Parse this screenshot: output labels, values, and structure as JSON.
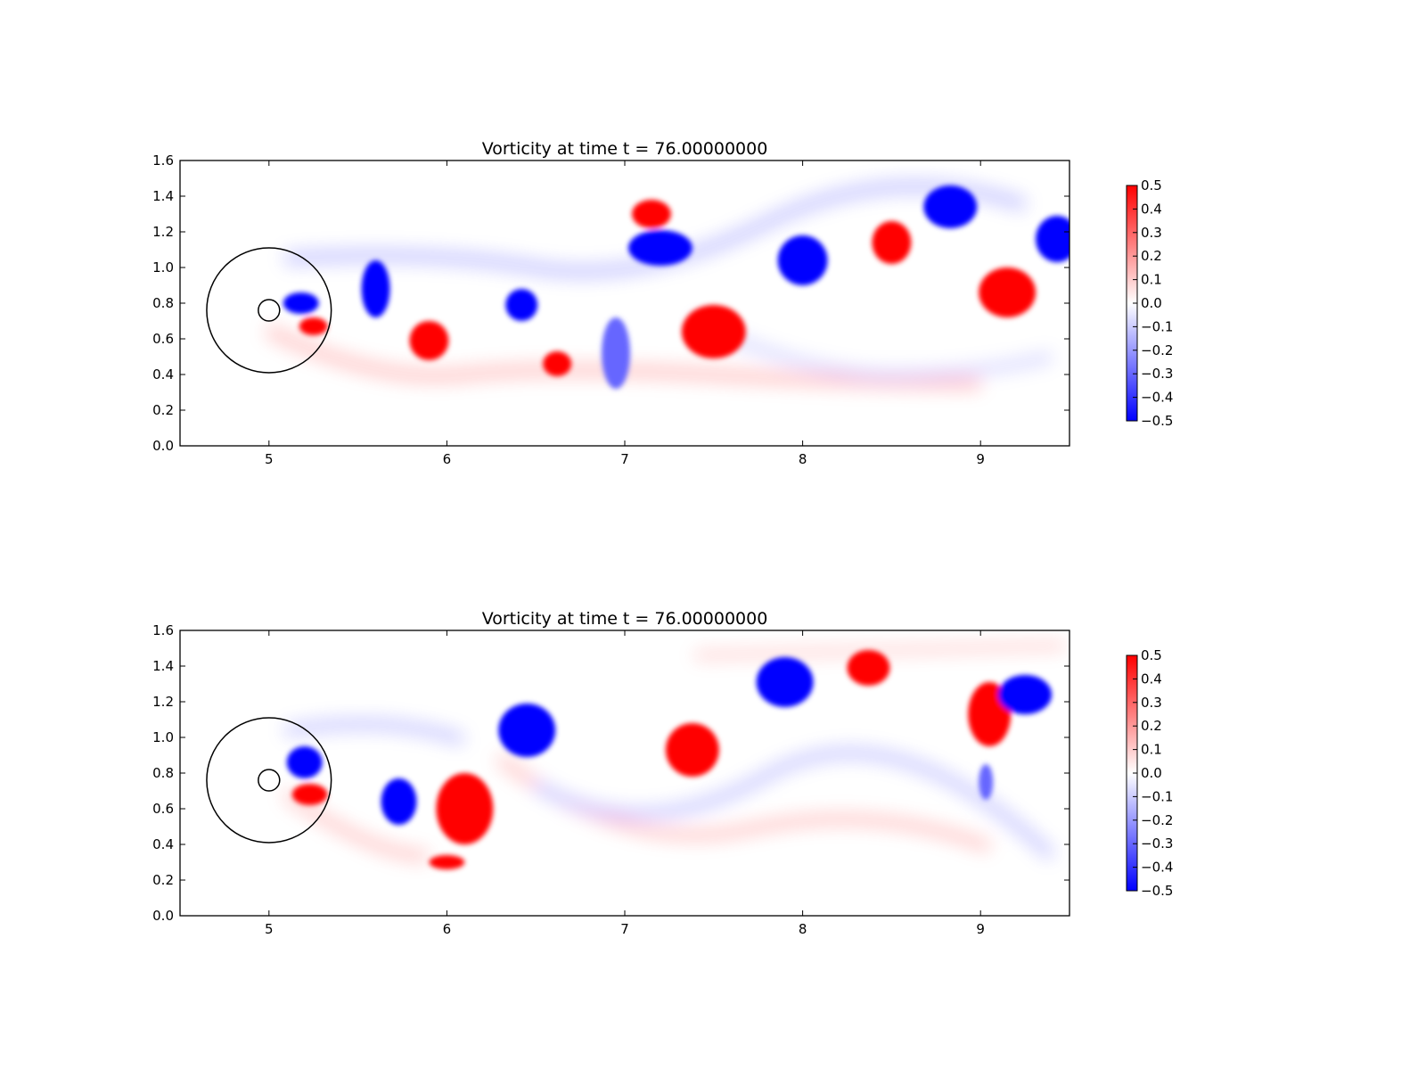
{
  "chart_data": [
    {
      "type": "heatmap",
      "title": "Vorticity at time t =    76.00000000",
      "xlabel": "",
      "ylabel": "",
      "xlim": [
        4.5,
        9.5
      ],
      "ylim": [
        0.0,
        1.6
      ],
      "x_ticks": [
        "5",
        "6",
        "7",
        "8",
        "9"
      ],
      "y_ticks": [
        "0.0",
        "0.2",
        "0.4",
        "0.6",
        "0.8",
        "1.0",
        "1.2",
        "1.4",
        "1.6"
      ],
      "colormap": "bwr",
      "colorbar": {
        "range": [
          -0.5,
          0.5
        ],
        "ticks": [
          "0.5",
          "0.4",
          "0.3",
          "0.2",
          "0.1",
          "0.0",
          "−0.1",
          "−0.2",
          "−0.3",
          "−0.4",
          "−0.5"
        ],
        "placement": "right"
      },
      "grid": false,
      "overlays": [
        {
          "shape": "circle",
          "center": [
            5.0,
            0.76
          ],
          "radius": 0.35
        },
        {
          "shape": "circle",
          "center": [
            5.0,
            0.76
          ],
          "radius": 0.06
        }
      ],
      "vortices": [
        {
          "x": 5.18,
          "y": 0.8,
          "rx": 0.1,
          "ry": 0.06,
          "value": -0.5
        },
        {
          "x": 5.25,
          "y": 0.67,
          "rx": 0.08,
          "ry": 0.05,
          "value": 0.5
        },
        {
          "x": 5.6,
          "y": 0.88,
          "rx": 0.08,
          "ry": 0.16,
          "value": -0.5
        },
        {
          "x": 5.9,
          "y": 0.59,
          "rx": 0.11,
          "ry": 0.11,
          "value": 0.5
        },
        {
          "x": 6.42,
          "y": 0.79,
          "rx": 0.09,
          "ry": 0.09,
          "value": -0.5
        },
        {
          "x": 6.62,
          "y": 0.46,
          "rx": 0.08,
          "ry": 0.07,
          "value": 0.5
        },
        {
          "x": 7.15,
          "y": 1.3,
          "rx": 0.11,
          "ry": 0.08,
          "value": 0.5
        },
        {
          "x": 7.2,
          "y": 1.11,
          "rx": 0.18,
          "ry": 0.1,
          "value": -0.5
        },
        {
          "x": 7.5,
          "y": 0.64,
          "rx": 0.18,
          "ry": 0.15,
          "value": 0.5
        },
        {
          "x": 8.0,
          "y": 1.04,
          "rx": 0.14,
          "ry": 0.14,
          "value": -0.5
        },
        {
          "x": 8.5,
          "y": 1.14,
          "rx": 0.11,
          "ry": 0.12,
          "value": 0.5
        },
        {
          "x": 8.83,
          "y": 1.34,
          "rx": 0.15,
          "ry": 0.12,
          "value": -0.5
        },
        {
          "x": 9.15,
          "y": 0.86,
          "rx": 0.16,
          "ry": 0.14,
          "value": 0.5
        },
        {
          "x": 9.43,
          "y": 1.16,
          "rx": 0.12,
          "ry": 0.13,
          "value": -0.5
        },
        {
          "x": 6.95,
          "y": 0.52,
          "rx": 0.08,
          "ry": 0.2,
          "value": -0.3
        }
      ]
    },
    {
      "type": "heatmap",
      "title": "Vorticity at time t =    76.00000000",
      "xlabel": "",
      "ylabel": "",
      "xlim": [
        4.5,
        9.5
      ],
      "ylim": [
        0.0,
        1.6
      ],
      "x_ticks": [
        "5",
        "6",
        "7",
        "8",
        "9"
      ],
      "y_ticks": [
        "0.0",
        "0.2",
        "0.4",
        "0.6",
        "0.8",
        "1.0",
        "1.2",
        "1.4",
        "1.6"
      ],
      "colormap": "bwr",
      "colorbar": {
        "range": [
          -0.5,
          0.5
        ],
        "ticks": [
          "0.5",
          "0.4",
          "0.3",
          "0.2",
          "0.1",
          "0.0",
          "−0.1",
          "−0.2",
          "−0.3",
          "−0.4",
          "−0.5"
        ],
        "placement": "right"
      },
      "grid": false,
      "overlays": [
        {
          "shape": "circle",
          "center": [
            5.0,
            0.76
          ],
          "radius": 0.35
        },
        {
          "shape": "circle",
          "center": [
            5.0,
            0.76
          ],
          "radius": 0.06
        }
      ],
      "vortices": [
        {
          "x": 5.2,
          "y": 0.86,
          "rx": 0.1,
          "ry": 0.09,
          "value": -0.5
        },
        {
          "x": 5.23,
          "y": 0.68,
          "rx": 0.1,
          "ry": 0.06,
          "value": 0.5
        },
        {
          "x": 5.73,
          "y": 0.64,
          "rx": 0.1,
          "ry": 0.13,
          "value": -0.5
        },
        {
          "x": 6.1,
          "y": 0.6,
          "rx": 0.16,
          "ry": 0.2,
          "value": 0.5
        },
        {
          "x": 6.0,
          "y": 0.3,
          "rx": 0.1,
          "ry": 0.04,
          "value": 0.5
        },
        {
          "x": 6.45,
          "y": 1.04,
          "rx": 0.16,
          "ry": 0.15,
          "value": -0.5
        },
        {
          "x": 7.38,
          "y": 0.93,
          "rx": 0.15,
          "ry": 0.15,
          "value": 0.5
        },
        {
          "x": 7.9,
          "y": 1.31,
          "rx": 0.16,
          "ry": 0.14,
          "value": -0.5
        },
        {
          "x": 8.37,
          "y": 1.39,
          "rx": 0.12,
          "ry": 0.1,
          "value": 0.5
        },
        {
          "x": 9.05,
          "y": 1.13,
          "rx": 0.12,
          "ry": 0.18,
          "value": 0.5
        },
        {
          "x": 9.25,
          "y": 1.24,
          "rx": 0.15,
          "ry": 0.11,
          "value": -0.5
        },
        {
          "x": 9.03,
          "y": 0.75,
          "rx": 0.04,
          "ry": 0.1,
          "value": -0.3
        }
      ]
    }
  ]
}
